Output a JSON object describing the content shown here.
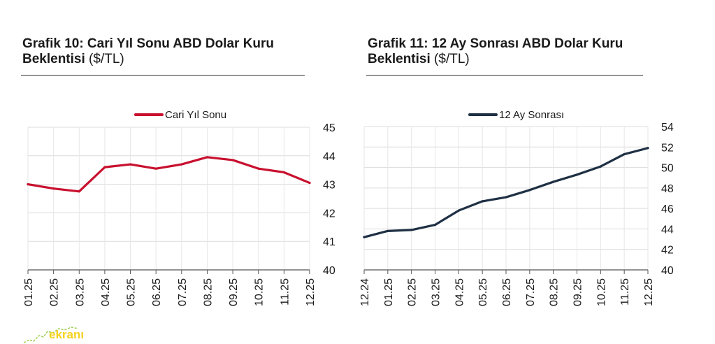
{
  "charts": [
    {
      "title_bold_line1": "Grafik 10: Cari Yıl Sonu ABD Dolar Kuru",
      "title_bold_line2": "Beklentisi",
      "title_unit": "($/TL)",
      "chart_data": {
        "type": "line",
        "title": "Grafik 10: Cari Yıl Sonu ABD Dolar Kuru Beklentisi ($/TL)",
        "xlabel": "",
        "ylabel": "",
        "categories": [
          "01.25",
          "02.25",
          "03.25",
          "04.25",
          "05.25",
          "06.25",
          "07.25",
          "08.25",
          "09.25",
          "10.25",
          "11.25",
          "12.25"
        ],
        "series": [
          {
            "name": "Cari Yıl Sonu",
            "color": "#c8102e",
            "values": [
              43.0,
              42.85,
              42.75,
              43.6,
              43.7,
              43.55,
              43.7,
              43.95,
              43.85,
              43.55,
              43.42,
              43.05
            ]
          }
        ],
        "ylim": [
          40,
          45
        ],
        "ytick_step": 1,
        "y_axis_side": "right",
        "grid": true,
        "legend": "top-center"
      }
    },
    {
      "title_bold_line1": "Grafik 11: 12 Ay Sonrası ABD Dolar Kuru",
      "title_bold_line2": "Beklentisi",
      "title_unit": "($/TL)",
      "chart_data": {
        "type": "line",
        "title": "Grafik 11: 12 Ay Sonrası ABD Dolar Kuru Beklentisi ($/TL)",
        "xlabel": "",
        "ylabel": "",
        "categories": [
          "12.24",
          "01.25",
          "02.25",
          "03.25",
          "04.25",
          "05.25",
          "06.25",
          "07.25",
          "08.25",
          "09.25",
          "10.25",
          "11.25",
          "12.25"
        ],
        "series": [
          {
            "name": "12 Ay Sonrası",
            "color": "#1f3044",
            "values": [
              43.2,
              43.8,
              43.9,
              44.4,
              45.8,
              46.7,
              47.1,
              47.8,
              48.6,
              49.3,
              50.1,
              51.3,
              51.9
            ]
          }
        ],
        "ylim": [
          40,
          54
        ],
        "ytick_step": 2,
        "y_axis_side": "right",
        "grid": true,
        "legend": "top-center"
      }
    }
  ],
  "watermark": {
    "text": "ekranı",
    "color": "#f4d21f"
  }
}
